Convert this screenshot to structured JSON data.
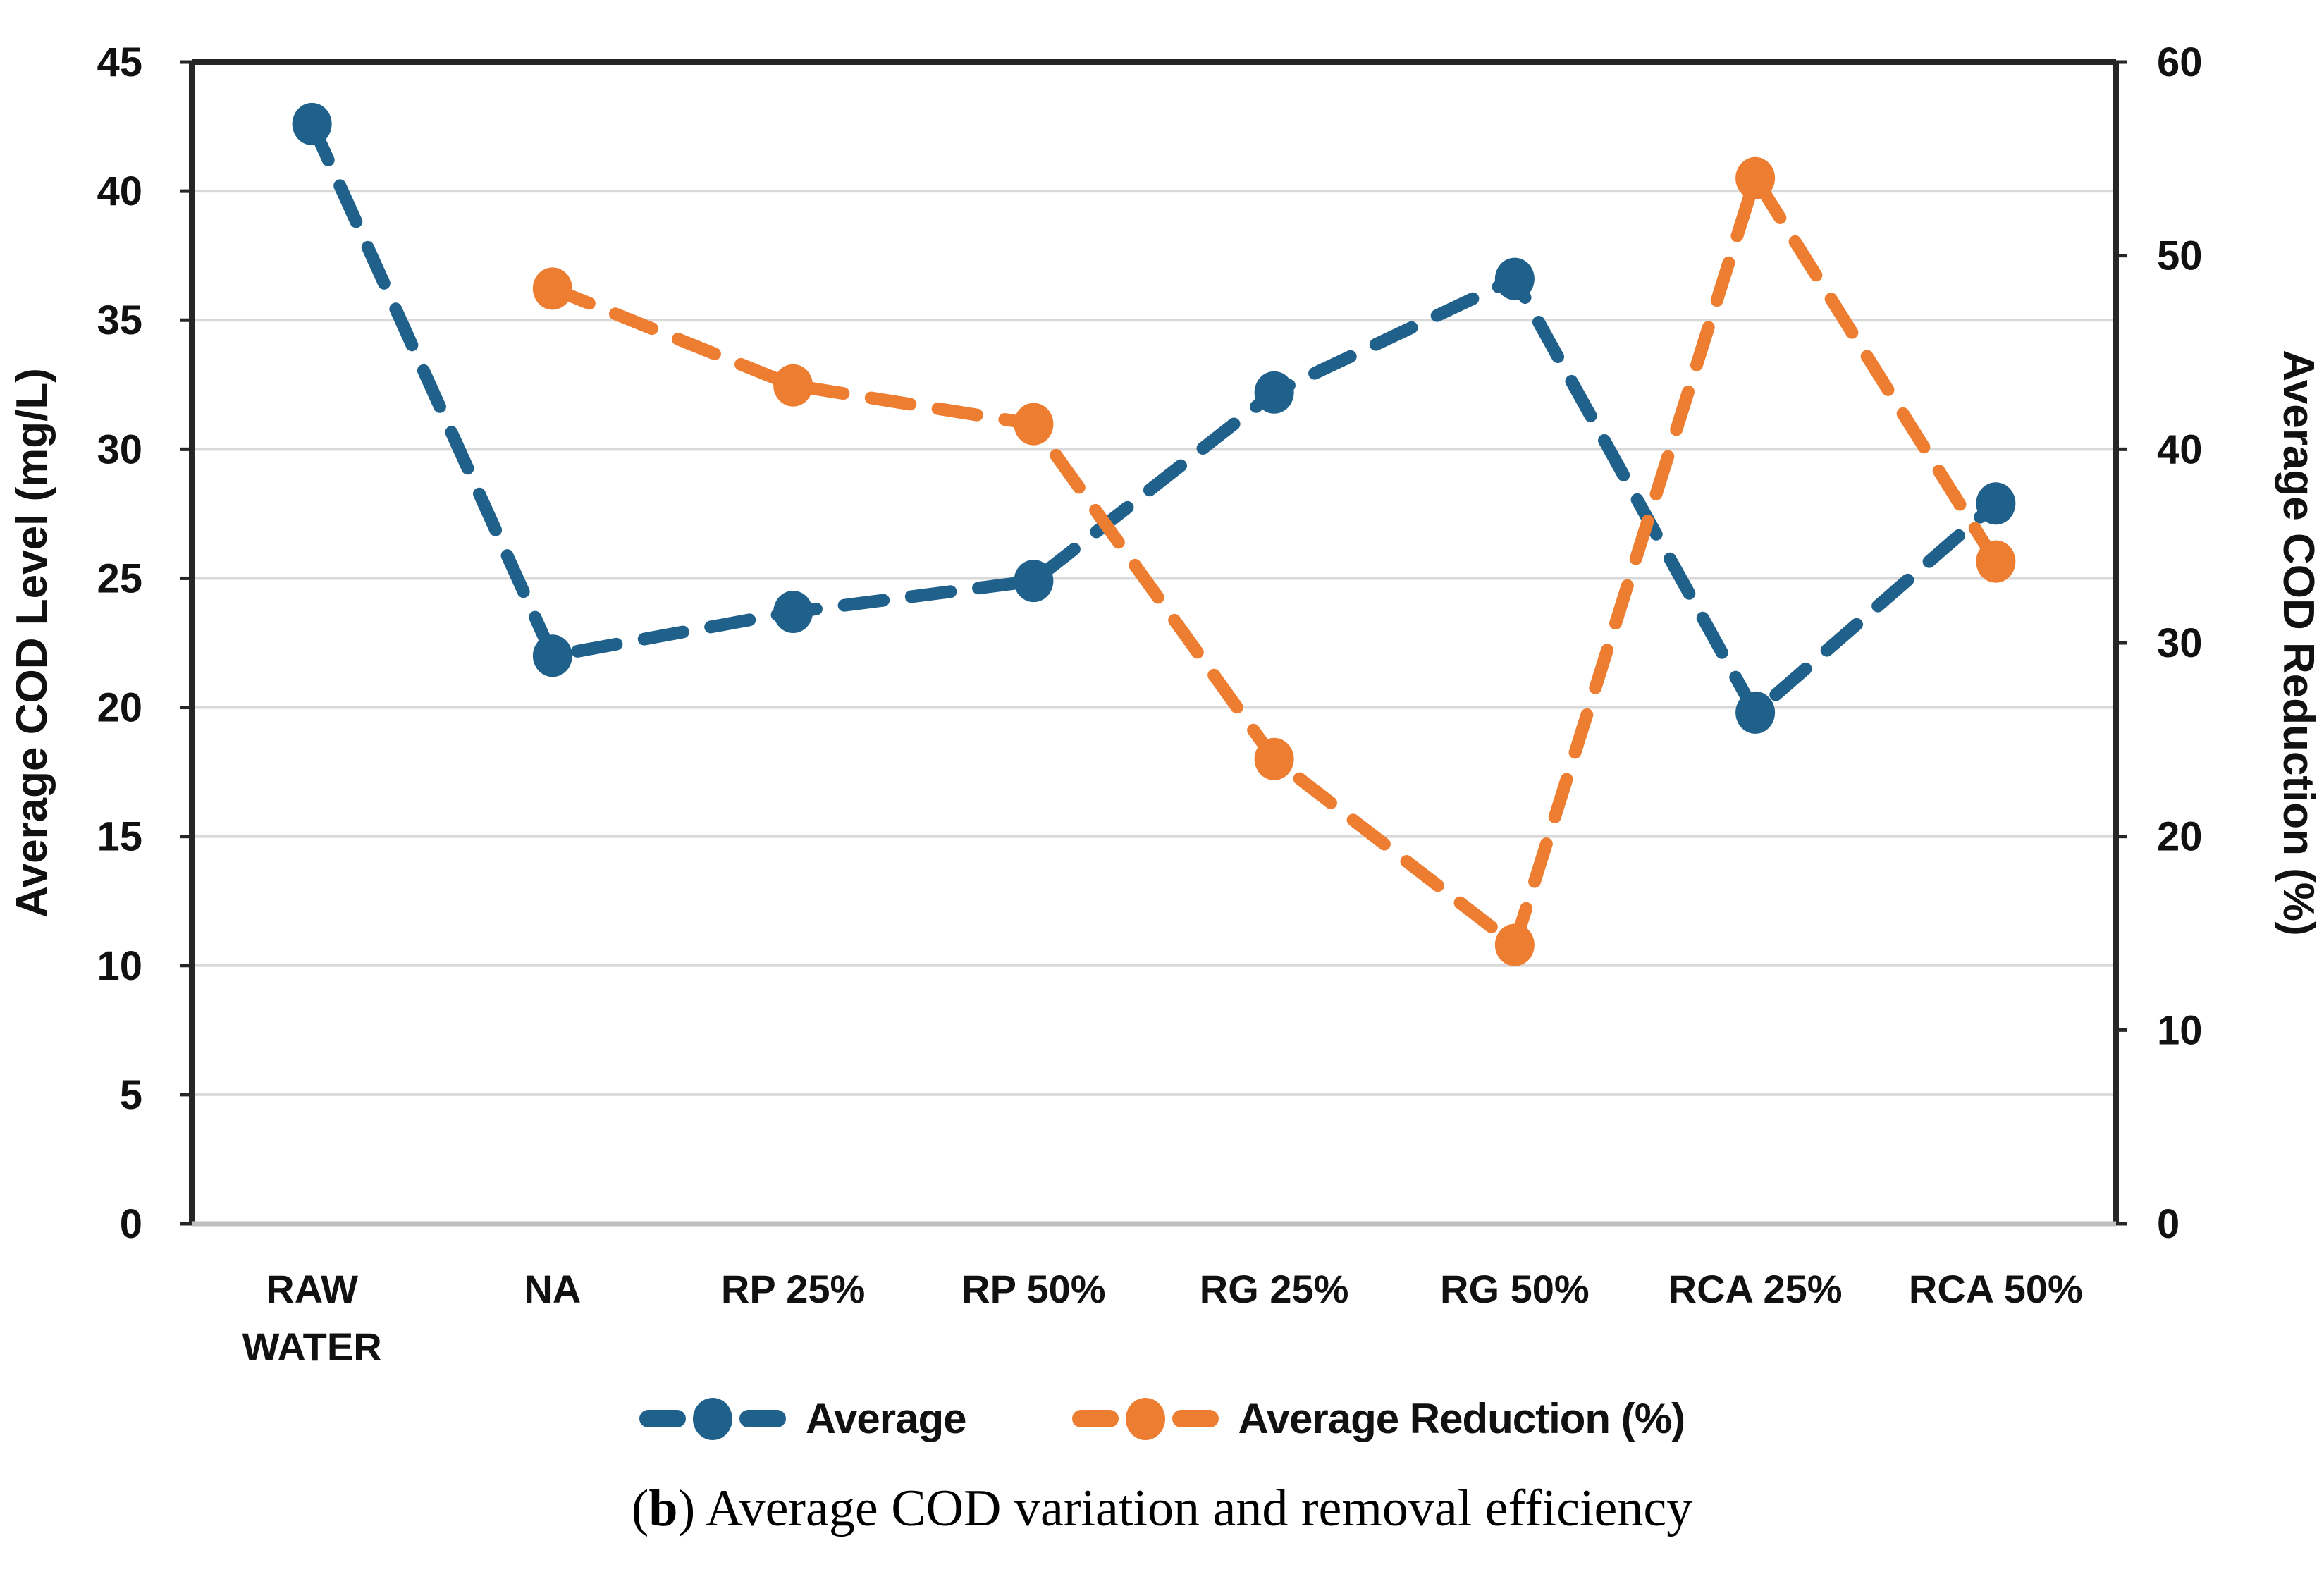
{
  "figure": {
    "caption": {
      "open": "(",
      "b": "b",
      "rest": ") Average COD variation and removal efficiency"
    }
  },
  "chart_data": {
    "type": "line",
    "line_style": "dashed-with-round-markers",
    "grid": true,
    "legend_position": "bottom",
    "categories": [
      "RAW WATER",
      "NA",
      "RP 25%",
      "RP 50%",
      "RG 25%",
      "RG 50%",
      "RCA 25%",
      "RCA 50%"
    ],
    "series": [
      {
        "name": "Average",
        "axis": "left",
        "color": "#20618C",
        "values": [
          42.6,
          22.0,
          23.7,
          24.9,
          32.2,
          36.6,
          19.8,
          27.9
        ]
      },
      {
        "name": "Average Reduction (%)",
        "axis": "right",
        "color": "#ED7D31",
        "values": [
          null,
          48.3,
          43.3,
          41.3,
          24.0,
          14.4,
          54.0,
          34.2
        ]
      }
    ],
    "left_axis": {
      "title": "Average COD Level (mg/L)",
      "min": 0,
      "max": 45,
      "step": 5,
      "ticks": [
        45,
        40,
        35,
        30,
        25,
        20,
        15,
        10,
        5,
        0
      ]
    },
    "right_axis": {
      "title": "Average COD Reduction (%)",
      "min": 0,
      "max": 60,
      "step": 10,
      "ticks": [
        60,
        50,
        40,
        30,
        20,
        10,
        0
      ]
    },
    "colors": {
      "gridline": "#D9D9D9",
      "plot_border": "#262626",
      "bottom_axis": "#BFBFBF",
      "text": "#111111"
    }
  }
}
